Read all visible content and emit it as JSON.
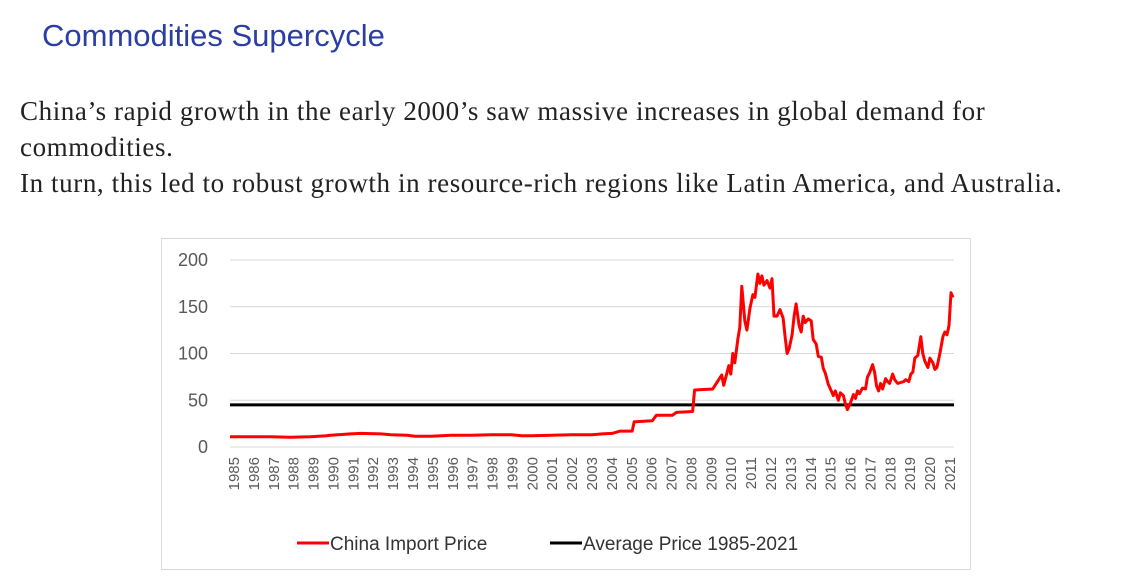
{
  "slide": {
    "title": "Commodities Supercycle",
    "paragraph1": "China’s rapid growth in the early 2000’s saw massive increases in global demand for commodities.",
    "paragraph2": "In turn, this led to robust growth in resource-rich regions like Latin America, and Australia."
  },
  "chart_data": {
    "type": "line",
    "title": "",
    "xlabel": "",
    "ylabel": "",
    "ylim": [
      0,
      200
    ],
    "yticks": [
      0,
      50,
      100,
      150,
      200
    ],
    "xlim": [
      1985,
      2021
    ],
    "x_tick_labels": [
      "1985",
      "1986",
      "1987",
      "1988",
      "1989",
      "1990",
      "1991",
      "1992",
      "1993",
      "1994",
      "1995",
      "1996",
      "1997",
      "1998",
      "1999",
      "2000",
      "2001",
      "2002",
      "2003",
      "2004",
      "2005",
      "2006",
      "2007",
      "2008",
      "2009",
      "2010",
      "2011",
      "2012",
      "2013",
      "2014",
      "2015",
      "2016",
      "2017",
      "2018",
      "2019",
      "2020",
      "2021"
    ],
    "grid": "horizontal",
    "legend_position": "bottom",
    "series": [
      {
        "name": "China Import Price",
        "color": "#ff0000",
        "points": [
          [
            1985.0,
            11
          ],
          [
            1986.0,
            11
          ],
          [
            1987.0,
            11
          ],
          [
            1988.0,
            10.5
          ],
          [
            1989.0,
            11
          ],
          [
            1989.8,
            12
          ],
          [
            1990.0,
            12.5
          ],
          [
            1991.0,
            14
          ],
          [
            1991.5,
            14.5
          ],
          [
            1992.5,
            14
          ],
          [
            1993.0,
            13
          ],
          [
            1993.8,
            12.5
          ],
          [
            1994.2,
            11.5
          ],
          [
            1995.0,
            11.5
          ],
          [
            1995.5,
            12
          ],
          [
            1996.0,
            12.5
          ],
          [
            1997.0,
            12.5
          ],
          [
            1998.0,
            13
          ],
          [
            1999.0,
            13
          ],
          [
            1999.5,
            12
          ],
          [
            2000.0,
            12
          ],
          [
            2001.0,
            12.5
          ],
          [
            2002.0,
            13
          ],
          [
            2003.0,
            13
          ],
          [
            2003.5,
            14
          ],
          [
            2004.0,
            14.5
          ],
          [
            2004.4,
            17
          ],
          [
            2005.0,
            17
          ],
          [
            2005.1,
            27
          ],
          [
            2006.0,
            28
          ],
          [
            2006.2,
            34
          ],
          [
            2007.0,
            34
          ],
          [
            2007.2,
            37
          ],
          [
            2008.0,
            38
          ],
          [
            2008.1,
            61
          ],
          [
            2009.0,
            62
          ],
          [
            2009.3,
            72
          ],
          [
            2009.45,
            77
          ],
          [
            2009.55,
            66
          ],
          [
            2009.65,
            74
          ],
          [
            2009.8,
            87
          ],
          [
            2009.9,
            78
          ],
          [
            2010.0,
            100
          ],
          [
            2010.1,
            90
          ],
          [
            2010.25,
            115
          ],
          [
            2010.35,
            128
          ],
          [
            2010.45,
            172
          ],
          [
            2010.6,
            135
          ],
          [
            2010.7,
            125
          ],
          [
            2010.85,
            148
          ],
          [
            2011.0,
            163
          ],
          [
            2011.1,
            160
          ],
          [
            2011.25,
            185
          ],
          [
            2011.35,
            175
          ],
          [
            2011.45,
            183
          ],
          [
            2011.55,
            173
          ],
          [
            2011.7,
            178
          ],
          [
            2011.85,
            170
          ],
          [
            2011.95,
            180
          ],
          [
            2012.05,
            140
          ],
          [
            2012.2,
            140
          ],
          [
            2012.35,
            147
          ],
          [
            2012.5,
            138
          ],
          [
            2012.6,
            118
          ],
          [
            2012.7,
            100
          ],
          [
            2012.8,
            105
          ],
          [
            2012.95,
            120
          ],
          [
            2013.05,
            140
          ],
          [
            2013.15,
            153
          ],
          [
            2013.3,
            130
          ],
          [
            2013.4,
            123
          ],
          [
            2013.5,
            140
          ],
          [
            2013.6,
            133
          ],
          [
            2013.75,
            137
          ],
          [
            2013.9,
            135
          ],
          [
            2014.0,
            115
          ],
          [
            2014.15,
            110
          ],
          [
            2014.25,
            97
          ],
          [
            2014.4,
            96
          ],
          [
            2014.5,
            84
          ],
          [
            2014.6,
            79
          ],
          [
            2014.75,
            67
          ],
          [
            2014.9,
            60
          ],
          [
            2015.0,
            55
          ],
          [
            2015.1,
            60
          ],
          [
            2015.25,
            50
          ],
          [
            2015.35,
            58
          ],
          [
            2015.5,
            55
          ],
          [
            2015.6,
            46
          ],
          [
            2015.7,
            40
          ],
          [
            2015.85,
            47
          ],
          [
            2016.0,
            56
          ],
          [
            2016.1,
            52
          ],
          [
            2016.2,
            60
          ],
          [
            2016.3,
            57
          ],
          [
            2016.45,
            63
          ],
          [
            2016.6,
            62
          ],
          [
            2016.7,
            75
          ],
          [
            2016.8,
            79
          ],
          [
            2016.95,
            88
          ],
          [
            2017.05,
            80
          ],
          [
            2017.15,
            65
          ],
          [
            2017.25,
            60
          ],
          [
            2017.35,
            68
          ],
          [
            2017.45,
            62
          ],
          [
            2017.6,
            73
          ],
          [
            2017.7,
            70
          ],
          [
            2017.8,
            68
          ],
          [
            2017.95,
            78
          ],
          [
            2018.05,
            72
          ],
          [
            2018.2,
            68
          ],
          [
            2018.35,
            69
          ],
          [
            2018.5,
            70
          ],
          [
            2018.6,
            72
          ],
          [
            2018.75,
            70
          ],
          [
            2018.85,
            78
          ],
          [
            2018.95,
            80
          ],
          [
            2019.05,
            95
          ],
          [
            2019.2,
            98
          ],
          [
            2019.35,
            118
          ],
          [
            2019.45,
            100
          ],
          [
            2019.55,
            92
          ],
          [
            2019.7,
            85
          ],
          [
            2019.8,
            95
          ],
          [
            2019.95,
            90
          ],
          [
            2020.05,
            83
          ],
          [
            2020.15,
            85
          ],
          [
            2020.3,
            100
          ],
          [
            2020.45,
            118
          ],
          [
            2020.55,
            123
          ],
          [
            2020.65,
            120
          ],
          [
            2020.75,
            130
          ],
          [
            2020.85,
            165
          ],
          [
            2020.95,
            160
          ]
        ]
      },
      {
        "name": "Average Price 1985-2021",
        "color": "#000000",
        "points": [
          [
            1985.0,
            45
          ],
          [
            2021.0,
            45
          ]
        ]
      }
    ]
  }
}
